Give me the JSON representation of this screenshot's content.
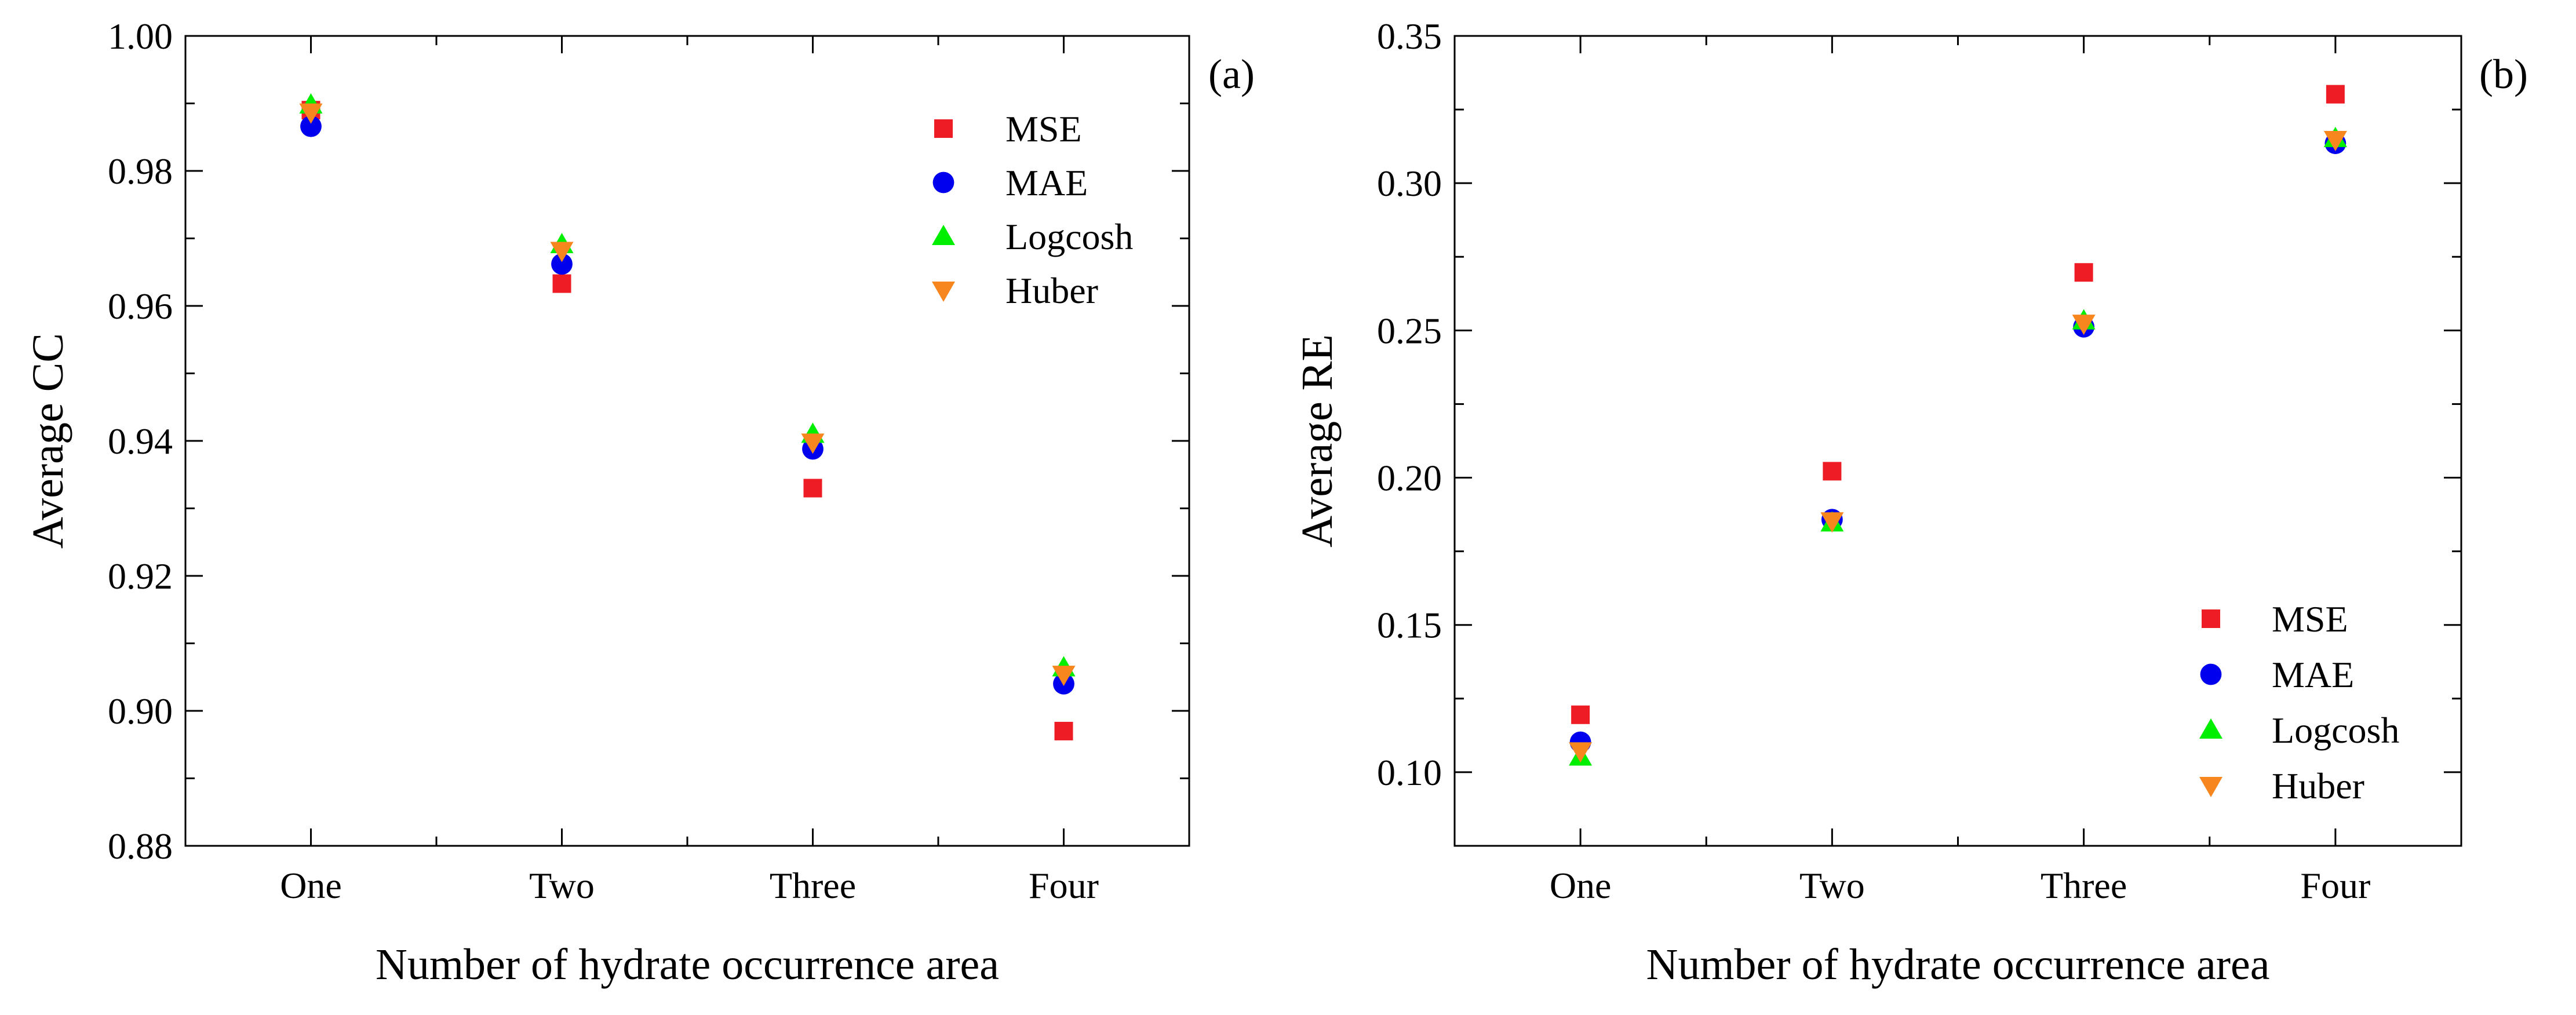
{
  "chart_data": [
    {
      "type": "scatter",
      "panel_label": "(a)",
      "xlabel": "Number of hydrate occurrence area",
      "ylabel": "Average CC",
      "categories": [
        "One",
        "Two",
        "Three",
        "Four"
      ],
      "ylim": [
        0.88,
        1.0
      ],
      "yticks": [
        0.88,
        0.9,
        0.92,
        0.94,
        0.96,
        0.98,
        1.0
      ],
      "ytick_labels": [
        "0.88",
        "0.90",
        "0.92",
        "0.94",
        "0.96",
        "0.98",
        "1.00"
      ],
      "legend_position": "top-right",
      "grid": false,
      "series": [
        {
          "name": "MSE",
          "marker": "square",
          "color": "#ee1c25",
          "values": [
            0.989,
            0.9633,
            0.933,
            0.897
          ]
        },
        {
          "name": "MAE",
          "marker": "circle",
          "color": "#0000ee",
          "values": [
            0.9866,
            0.9662,
            0.9388,
            0.904
          ]
        },
        {
          "name": "Logcosh",
          "marker": "triangle-up",
          "color": "#00ee00",
          "values": [
            0.9898,
            0.9691,
            0.941,
            0.9064
          ]
        },
        {
          "name": "Huber",
          "marker": "triangle-down",
          "color": "#f7861f",
          "values": [
            0.9887,
            0.9682,
            0.9398,
            0.9054
          ]
        }
      ]
    },
    {
      "type": "scatter",
      "panel_label": "(b)",
      "xlabel": "Number of hydrate occurrence area",
      "ylabel": "Average RE",
      "categories": [
        "One",
        "Two",
        "Three",
        "Four"
      ],
      "ylim": [
        0.075,
        0.35
      ],
      "yticks": [
        0.1,
        0.15,
        0.2,
        0.25,
        0.3,
        0.35
      ],
      "ytick_labels": [
        "0.10",
        "0.15",
        "0.20",
        "0.25",
        "0.30",
        "0.35"
      ],
      "legend_position": "bottom-right",
      "grid": false,
      "series": [
        {
          "name": "MSE",
          "marker": "square",
          "color": "#ee1c25",
          "values": [
            0.1195,
            0.2022,
            0.2697,
            0.3302
          ]
        },
        {
          "name": "MAE",
          "marker": "circle",
          "color": "#0000ee",
          "values": [
            0.1102,
            0.1858,
            0.2512,
            0.3135
          ]
        },
        {
          "name": "Logcosh",
          "marker": "triangle-up",
          "color": "#00ee00",
          "values": [
            0.1052,
            0.1847,
            0.2533,
            0.3152
          ]
        },
        {
          "name": "Huber",
          "marker": "triangle-down",
          "color": "#f7861f",
          "values": [
            0.1072,
            0.1853,
            0.2524,
            0.3148
          ]
        }
      ]
    }
  ]
}
